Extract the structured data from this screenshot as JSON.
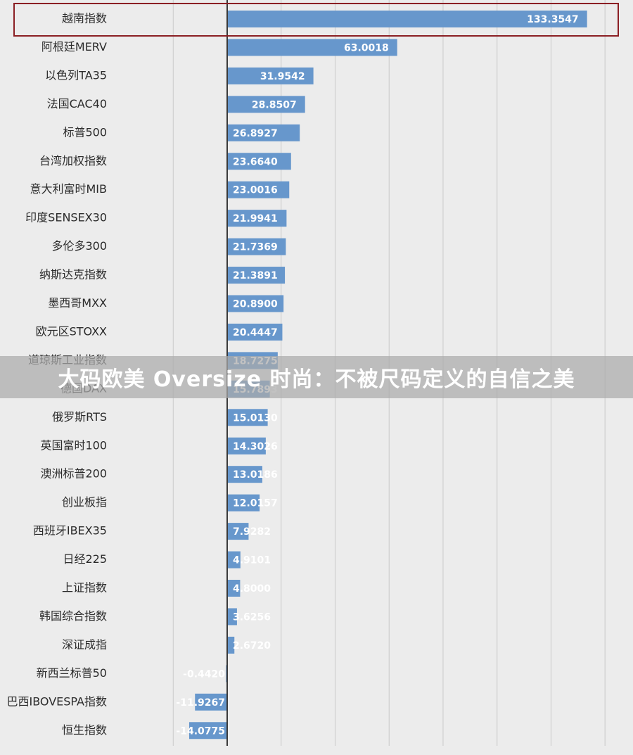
{
  "chart_data": {
    "type": "bar",
    "orientation": "horizontal",
    "categories": [
      "越南指数",
      "阿根廷MERV",
      "以色列TA35",
      "法国CAC40",
      "标普500",
      "台湾加权指数",
      "意大利富时MIB",
      "印度SENSEX30",
      "多伦多300",
      "纳斯达克指数",
      "墨西哥MXX",
      "欧元区STOXX",
      "道琼斯工业指数",
      "德国DAX",
      "俄罗斯RTS",
      "英国富时100",
      "澳洲标普200",
      "创业板指",
      "西班牙IBEX35",
      "日经225",
      "上证指数",
      "韩国综合指数",
      "深证成指",
      "新西兰标普50",
      "巴西IBOVESPA指数",
      "恒生指数"
    ],
    "values": [
      133.3547,
      63.0018,
      31.9542,
      28.8507,
      26.8927,
      23.664,
      23.0016,
      21.9941,
      21.7369,
      21.3891,
      20.89,
      20.4447,
      18.7275,
      15.7893,
      15.013,
      14.3026,
      13.0186,
      12.0157,
      7.9282,
      4.9101,
      4.8,
      3.6256,
      2.672,
      -0.442,
      -11.9267,
      -14.0775
    ],
    "labels": [
      "133.3547",
      "63.0018",
      "31.9542",
      "28.8507",
      "26.8927",
      "23.6640",
      "23.0016",
      "21.9941",
      "21.7369",
      "21.3891",
      "20.8900",
      "20.4447",
      "18.7275",
      "15.7893",
      "15.0130",
      "14.3026",
      "13.0186",
      "12.0157",
      "7.9282",
      "4.9101",
      "4.8000",
      "3.6256",
      "2.6720",
      "-0.4420",
      "-11.9267",
      "-14.0775"
    ],
    "xlim": [
      -20,
      140
    ],
    "grid": true,
    "bar_color": "#6797cc",
    "highlighted_category": "越南指数",
    "highlight_color": "#8b1f24"
  },
  "banner": {
    "text": "大码欧美 Oversize 时尚：不被尺码定义的自信之美"
  }
}
